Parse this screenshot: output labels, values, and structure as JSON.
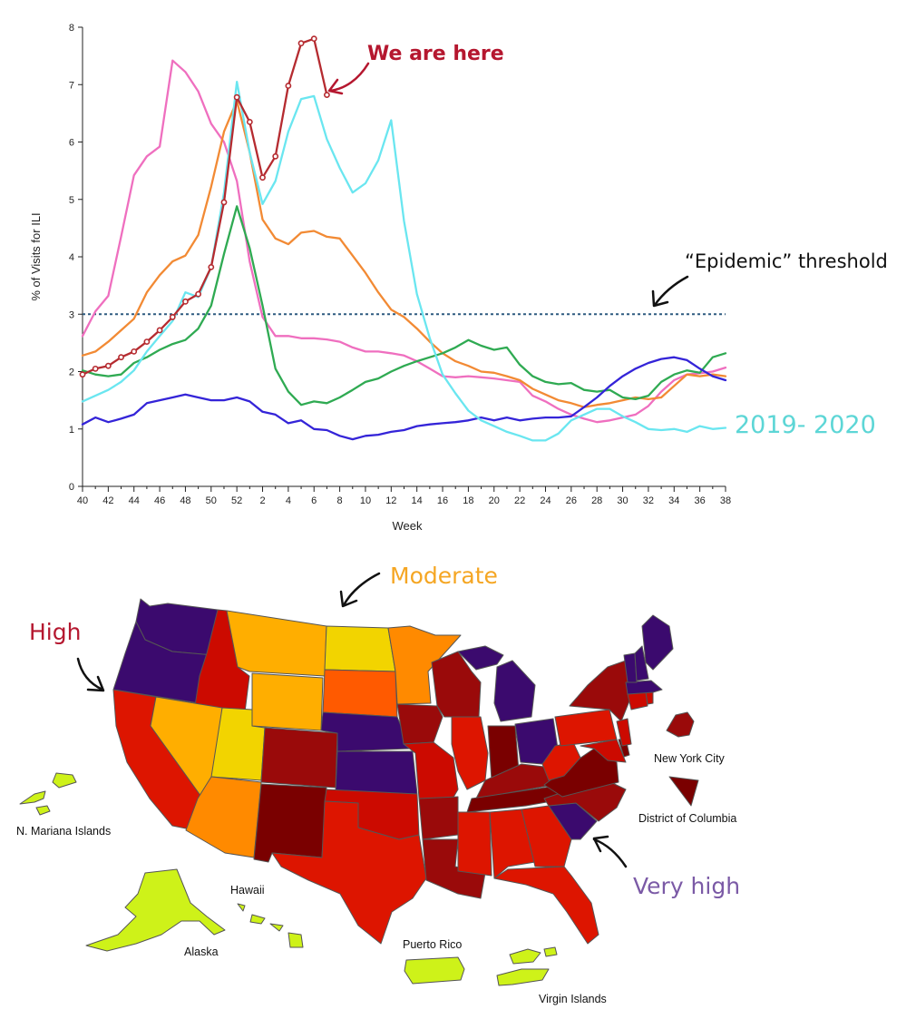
{
  "colors": {
    "very_high": "#3b0a6e",
    "high_dark": "#7a0000",
    "high_mid": "#9a0a0a",
    "high": "#cc0a00",
    "high_light": "#dd1500",
    "moderate_orange": "#ff5a00",
    "moderate": "#ffae00",
    "low_yellow": "#f2d400",
    "minimal": "#cef219",
    "annotation_red": "#b5172f",
    "annotation_orange": "#f5a623",
    "annotation_purple": "#7b5aa6",
    "annotation_cyan": "#5dd6d6"
  },
  "chart_data": {
    "type": "line",
    "xlabel": "Week",
    "ylabel": "% of Visits for ILI",
    "ylim": [
      0,
      8
    ],
    "yticks": [
      "0",
      "1",
      "2",
      "3",
      "4",
      "5",
      "6",
      "7",
      "8"
    ],
    "xticks": [
      "40",
      "42",
      "44",
      "46",
      "48",
      "50",
      "52",
      "2",
      "4",
      "6",
      "8",
      "10",
      "12",
      "14",
      "16",
      "18",
      "20",
      "22",
      "24",
      "26",
      "28",
      "30",
      "32",
      "34",
      "36",
      "38"
    ],
    "threshold": {
      "value": 3,
      "label": "“Epidemic” threshold",
      "color": "#2f5b80"
    },
    "series": [
      {
        "color": "#ef6fbf",
        "values": [
          2.62,
          3.05,
          3.32,
          4.35,
          5.42,
          5.75,
          5.92,
          7.42,
          7.22,
          6.88,
          6.32,
          6.0,
          5.32,
          3.92,
          2.95,
          2.62,
          2.62,
          2.58,
          2.58,
          2.56,
          2.52,
          2.42,
          2.35,
          2.35,
          2.32,
          2.28,
          2.18,
          2.05,
          1.92,
          1.9,
          1.92,
          1.9,
          1.88,
          1.85,
          1.82,
          1.58,
          1.48,
          1.35,
          1.25,
          1.18,
          1.12,
          1.15,
          1.2,
          1.25,
          1.4,
          1.65,
          1.85,
          1.95,
          1.97,
          2.0,
          2.07
        ]
      },
      {
        "color": "#f28a34",
        "values": [
          2.28,
          2.35,
          2.52,
          2.72,
          2.92,
          3.38,
          3.68,
          3.92,
          4.02,
          4.38,
          5.22,
          6.18,
          6.72,
          5.82,
          4.65,
          4.32,
          4.22,
          4.42,
          4.45,
          4.35,
          4.32,
          4.02,
          3.72,
          3.38,
          3.08,
          2.95,
          2.75,
          2.52,
          2.32,
          2.18,
          2.1,
          2.0,
          1.98,
          1.92,
          1.85,
          1.7,
          1.6,
          1.5,
          1.45,
          1.38,
          1.42,
          1.45,
          1.5,
          1.55,
          1.52,
          1.55,
          1.75,
          1.95,
          1.92,
          1.95,
          1.92
        ]
      },
      {
        "color": "#2faa52",
        "values": [
          2.02,
          1.95,
          1.92,
          1.95,
          2.15,
          2.25,
          2.38,
          2.48,
          2.55,
          2.75,
          3.15,
          4.05,
          4.88,
          4.15,
          3.15,
          2.05,
          1.65,
          1.42,
          1.48,
          1.45,
          1.55,
          1.68,
          1.82,
          1.88,
          2.0,
          2.1,
          2.18,
          2.25,
          2.32,
          2.42,
          2.55,
          2.45,
          2.38,
          2.42,
          2.12,
          1.92,
          1.82,
          1.78,
          1.8,
          1.68,
          1.65,
          1.68,
          1.55,
          1.52,
          1.58,
          1.82,
          1.95,
          2.02,
          1.98,
          2.25,
          2.32
        ]
      },
      {
        "color": "#3424d8",
        "values": [
          1.08,
          1.2,
          1.12,
          1.18,
          1.25,
          1.45,
          1.5,
          1.55,
          1.6,
          1.55,
          1.5,
          1.5,
          1.55,
          1.48,
          1.3,
          1.25,
          1.1,
          1.15,
          1.0,
          0.98,
          0.88,
          0.82,
          0.88,
          0.9,
          0.95,
          0.98,
          1.05,
          1.08,
          1.1,
          1.12,
          1.15,
          1.2,
          1.15,
          1.2,
          1.15,
          1.18,
          1.2,
          1.2,
          1.22,
          1.38,
          1.55,
          1.75,
          1.92,
          2.05,
          2.15,
          2.22,
          2.25,
          2.2,
          2.05,
          1.92,
          1.85
        ]
      },
      {
        "name": "2019- 2020",
        "color": "#6ae6f0",
        "values": [
          1.48,
          1.58,
          1.68,
          1.82,
          2.02,
          2.35,
          2.62,
          2.88,
          3.38,
          3.3,
          3.82,
          5.12,
          7.05,
          5.82,
          4.92,
          5.32,
          6.18,
          6.75,
          6.8,
          6.05,
          5.55,
          5.12,
          5.28,
          5.68,
          6.38,
          4.62,
          3.35,
          2.58,
          1.95,
          1.62,
          1.32,
          1.15,
          1.05,
          0.95,
          0.88,
          0.8,
          0.8,
          0.92,
          1.15,
          1.25,
          1.35,
          1.35,
          1.22,
          1.12,
          1.0,
          0.98,
          1.0,
          0.95,
          1.05,
          1.0,
          1.02
        ]
      },
      {
        "color": "#b52b30",
        "markers": true,
        "values": [
          1.95,
          2.05,
          2.1,
          2.25,
          2.35,
          2.52,
          2.72,
          2.95,
          3.22,
          3.35,
          3.82,
          4.95,
          6.78,
          6.35,
          5.38,
          5.75,
          6.98,
          7.72,
          7.8,
          6.82
        ]
      }
    ],
    "annotations": {
      "we_are_here": "We are here",
      "epidemic": "“Epidemic” threshold",
      "season": "2019- 2020"
    }
  },
  "map": {
    "levels": {
      "moderate": "Moderate",
      "high": "High",
      "very_high": "Very high"
    },
    "labels": {
      "new_york_city": "New York City",
      "dc": "District of Columbia",
      "mariana": "N. Mariana Islands",
      "hawaii": "Hawaii",
      "alaska": "Alaska",
      "puerto_rico": "Puerto Rico",
      "virgin_islands": "Virgin Islands"
    }
  }
}
